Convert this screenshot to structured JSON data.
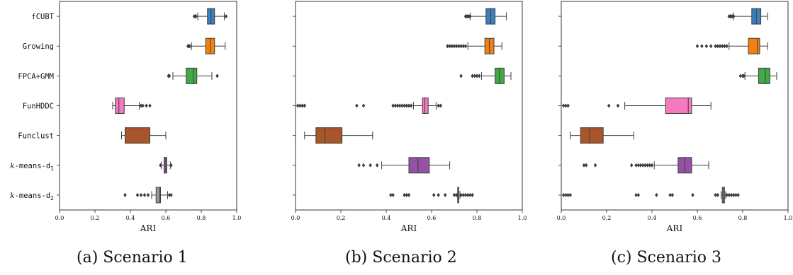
{
  "shared": {
    "categories": [
      "fCUBT",
      "Growing",
      "FPCA+GMM",
      "FunHDDC",
      "Funclust",
      "k-means-d1",
      "k-means-d2"
    ],
    "category_parts": [
      {
        "main": "fCUBT",
        "sub": ""
      },
      {
        "main": "Growing",
        "sub": ""
      },
      {
        "main": "FPCA+GMM",
        "sub": ""
      },
      {
        "main": "FunHDDC",
        "sub": ""
      },
      {
        "main": "Funclust",
        "sub": ""
      },
      {
        "main": "k-means-d",
        "sub": "1",
        "italic_k": true
      },
      {
        "main": "k-means-d",
        "sub": "2",
        "italic_k": true
      }
    ],
    "colors": [
      "#3b80bf",
      "#f28112",
      "#41aa45",
      "#f579be",
      "#a9552b",
      "#9451a5",
      "#999999"
    ],
    "xlabel": "ARI",
    "xticks": [
      "0.0",
      "0.2",
      "0.4",
      "0.6",
      "0.8",
      "1.0"
    ]
  },
  "chart_data": [
    {
      "type": "boxplot",
      "caption": "(a) Scenario 1",
      "xlabel": "ARI",
      "xlim": [
        0,
        1
      ],
      "series": [
        {
          "category": "fCUBT",
          "q1": 0.835,
          "median": 0.855,
          "q3": 0.875,
          "whisker_low": 0.78,
          "whisker_high": 0.93,
          "outliers": [
            0.76,
            0.765,
            0.77,
            0.94
          ]
        },
        {
          "category": "Growing",
          "q1": 0.825,
          "median": 0.85,
          "q3": 0.875,
          "whisker_low": 0.745,
          "whisker_high": 0.935,
          "outliers": [
            0.725,
            0.73,
            0.735
          ]
        },
        {
          "category": "FPCA+GMM",
          "q1": 0.715,
          "median": 0.755,
          "q3": 0.775,
          "whisker_low": 0.64,
          "whisker_high": 0.86,
          "outliers": [
            0.615,
            0.62,
            0.89
          ]
        },
        {
          "category": "FunHDDC",
          "q1": 0.315,
          "median": 0.335,
          "q3": 0.365,
          "whisker_low": 0.3,
          "whisker_high": 0.45,
          "outliers": [
            0.46,
            0.47,
            0.49,
            0.51
          ]
        },
        {
          "category": "Funclust",
          "q1": 0.37,
          "median": 0.37,
          "q3": 0.51,
          "whisker_low": 0.35,
          "whisker_high": 0.6,
          "outliers": []
        },
        {
          "category": "k-means-d1",
          "q1": 0.59,
          "median": 0.6,
          "q3": 0.605,
          "whisker_low": 0.575,
          "whisker_high": 0.625,
          "outliers": [
            0.57,
            0.63
          ]
        },
        {
          "category": "k-means-d2",
          "q1": 0.545,
          "median": 0.565,
          "q3": 0.57,
          "whisker_low": 0.52,
          "whisker_high": 0.61,
          "outliers": [
            0.37,
            0.44,
            0.46,
            0.48,
            0.5,
            0.62,
            0.63
          ]
        }
      ]
    },
    {
      "type": "boxplot",
      "caption": "(b) Scenario 2",
      "xlabel": "ARI",
      "xlim": [
        0,
        1
      ],
      "series": [
        {
          "category": "fCUBT",
          "q1": 0.84,
          "median": 0.86,
          "q3": 0.88,
          "whisker_low": 0.77,
          "whisker_high": 0.93,
          "outliers": [
            0.75,
            0.755,
            0.76,
            0.765,
            0.77
          ]
        },
        {
          "category": "Growing",
          "q1": 0.835,
          "median": 0.855,
          "q3": 0.875,
          "whisker_low": 0.76,
          "whisker_high": 0.91,
          "outliers": [
            0.67,
            0.68,
            0.69,
            0.7,
            0.71,
            0.72,
            0.73,
            0.74,
            0.75
          ]
        },
        {
          "category": "FPCA+GMM",
          "q1": 0.88,
          "median": 0.9,
          "q3": 0.92,
          "whisker_low": 0.82,
          "whisker_high": 0.95,
          "outliers": [
            0.73,
            0.78,
            0.79,
            0.8,
            0.81
          ]
        },
        {
          "category": "FunHDDC",
          "q1": 0.56,
          "median": 0.57,
          "q3": 0.585,
          "whisker_low": 0.52,
          "whisker_high": 0.62,
          "outliers": [
            0.01,
            0.02,
            0.03,
            0.04,
            0.27,
            0.3,
            0.43,
            0.44,
            0.45,
            0.46,
            0.47,
            0.48,
            0.49,
            0.5,
            0.51,
            0.63,
            0.64
          ]
        },
        {
          "category": "Funclust",
          "q1": 0.09,
          "median": 0.13,
          "q3": 0.205,
          "whisker_low": 0.04,
          "whisker_high": 0.34,
          "outliers": []
        },
        {
          "category": "k-means-d1",
          "q1": 0.5,
          "median": 0.54,
          "q3": 0.59,
          "whisker_low": 0.38,
          "whisker_high": 0.68,
          "outliers": [
            0.28,
            0.3,
            0.33,
            0.36
          ]
        },
        {
          "category": "k-means-d2",
          "q1": 0.715,
          "median": 0.72,
          "q3": 0.72,
          "whisker_low": 0.715,
          "whisker_high": 0.725,
          "outliers": [
            0.42,
            0.43,
            0.48,
            0.49,
            0.5,
            0.61,
            0.63,
            0.66,
            0.7,
            0.71,
            0.73,
            0.74,
            0.75,
            0.76,
            0.77,
            0.78
          ]
        }
      ]
    },
    {
      "type": "boxplot",
      "caption": "(c) Scenario 3",
      "xlabel": "ARI",
      "xlim": [
        0,
        1
      ],
      "series": [
        {
          "category": "fCUBT",
          "q1": 0.84,
          "median": 0.86,
          "q3": 0.88,
          "whisker_low": 0.76,
          "whisker_high": 0.91,
          "outliers": [
            0.74,
            0.745,
            0.75,
            0.755,
            0.76
          ]
        },
        {
          "category": "Growing",
          "q1": 0.825,
          "median": 0.865,
          "q3": 0.875,
          "whisker_low": 0.74,
          "whisker_high": 0.91,
          "outliers": [
            0.6,
            0.62,
            0.64,
            0.66,
            0.68,
            0.69,
            0.7,
            0.71,
            0.72,
            0.73
          ]
        },
        {
          "category": "FPCA+GMM",
          "q1": 0.87,
          "median": 0.9,
          "q3": 0.92,
          "whisker_low": 0.81,
          "whisker_high": 0.95,
          "outliers": [
            0.79,
            0.8,
            0.805
          ]
        },
        {
          "category": "FunHDDC",
          "q1": 0.46,
          "median": 0.56,
          "q3": 0.575,
          "whisker_low": 0.28,
          "whisker_high": 0.66,
          "outliers": [
            0.01,
            0.02,
            0.03,
            0.21,
            0.25
          ]
        },
        {
          "category": "Funclust",
          "q1": 0.085,
          "median": 0.125,
          "q3": 0.185,
          "whisker_low": 0.04,
          "whisker_high": 0.32,
          "outliers": []
        },
        {
          "category": "k-means-d1",
          "q1": 0.515,
          "median": 0.545,
          "q3": 0.575,
          "whisker_low": 0.41,
          "whisker_high": 0.65,
          "outliers": [
            0.1,
            0.11,
            0.15,
            0.31,
            0.33,
            0.34,
            0.35,
            0.36,
            0.37,
            0.38,
            0.39,
            0.4
          ]
        },
        {
          "category": "k-means-d2",
          "q1": 0.71,
          "median": 0.715,
          "q3": 0.72,
          "whisker_low": 0.705,
          "whisker_high": 0.725,
          "outliers": [
            0.01,
            0.02,
            0.03,
            0.04,
            0.33,
            0.34,
            0.42,
            0.48,
            0.49,
            0.58,
            0.68,
            0.69,
            0.73,
            0.74,
            0.75,
            0.76,
            0.77,
            0.78
          ]
        }
      ]
    }
  ]
}
